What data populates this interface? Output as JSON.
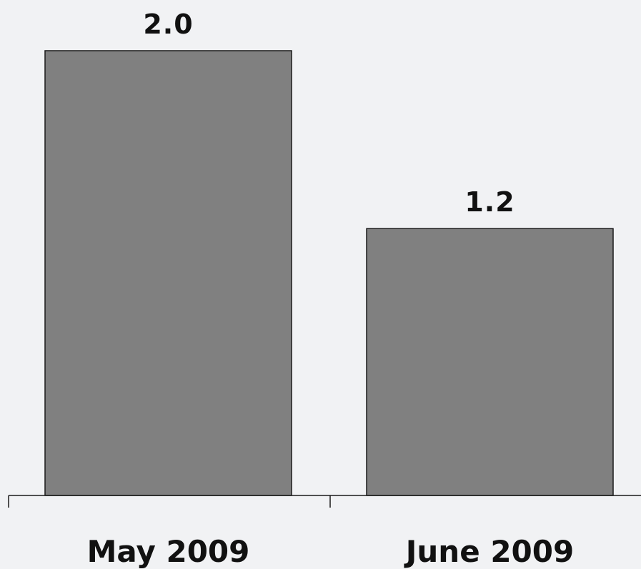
{
  "chart_data": {
    "type": "bar",
    "title": "",
    "xlabel": "",
    "ylabel": "",
    "categories": [
      "May 2009",
      "June 2009"
    ],
    "values": [
      2.0,
      1.2
    ],
    "value_labels": [
      "2.0",
      "1.2"
    ],
    "ylim": [
      0,
      2.0
    ],
    "grid": false,
    "bar_color": "#808080",
    "background_color": "#f1f2f4"
  }
}
